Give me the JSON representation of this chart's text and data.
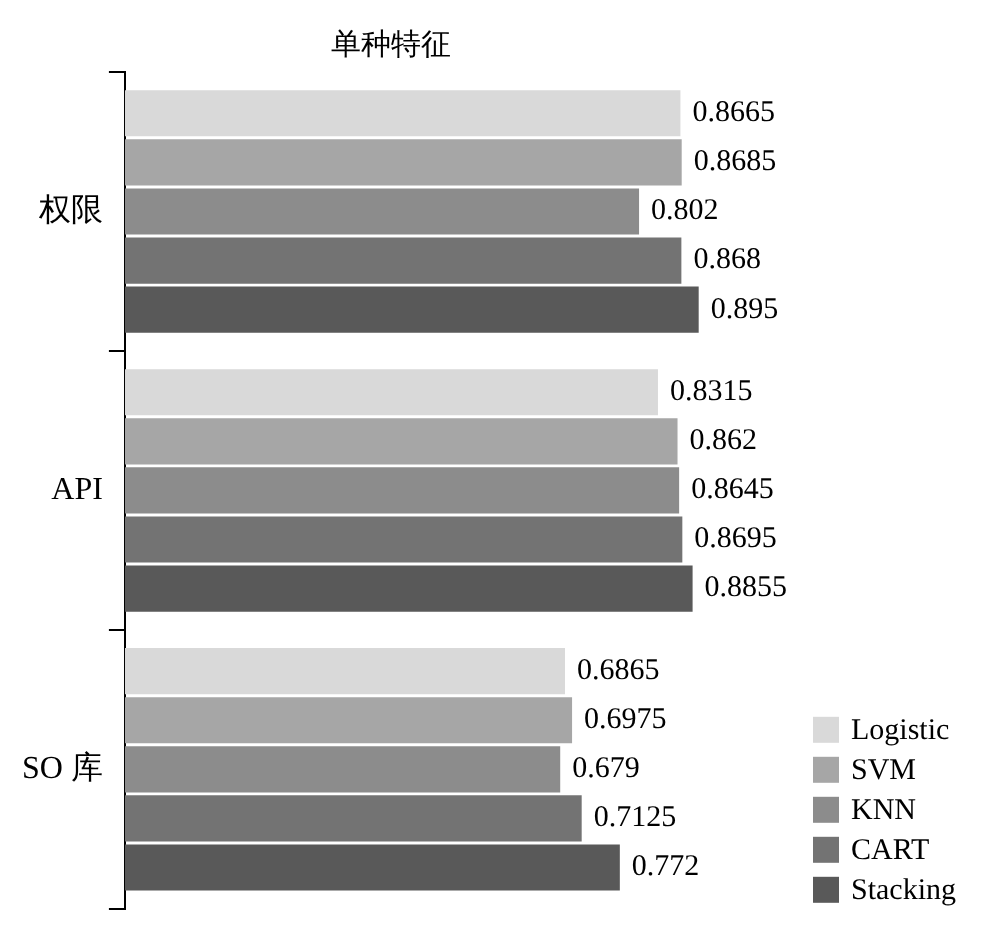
{
  "chart_data": {
    "type": "bar",
    "orientation": "horizontal",
    "title": "单种特征",
    "categories": [
      "权限",
      "API",
      "SO 库"
    ],
    "series": [
      {
        "name": "Logistic",
        "color": "#d9d9d9",
        "values": [
          0.8665,
          0.8315,
          0.6865
        ]
      },
      {
        "name": "SVM",
        "color": "#a6a6a6",
        "values": [
          0.8685,
          0.862,
          0.6975
        ]
      },
      {
        "name": "KNN",
        "color": "#8c8c8c",
        "values": [
          0.802,
          0.8645,
          0.679
        ]
      },
      {
        "name": "CART",
        "color": "#737373",
        "values": [
          0.868,
          0.8695,
          0.7125
        ]
      },
      {
        "name": "Stacking",
        "color": "#595959",
        "values": [
          0.895,
          0.8855,
          0.772
        ]
      }
    ],
    "tick_labels": "y",
    "data_labels": true,
    "legend": "bottom right"
  }
}
